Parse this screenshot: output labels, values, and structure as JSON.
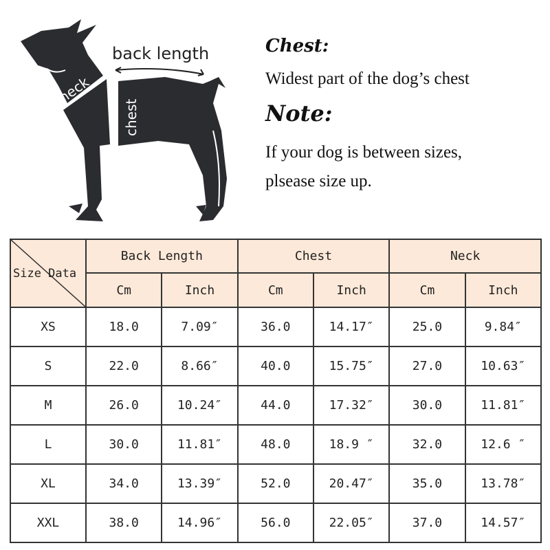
{
  "figure": {
    "labels": {
      "back_length": "back length",
      "neck": "neck",
      "chest": "chest"
    }
  },
  "notes": {
    "chest_title": "Chest:",
    "chest_text": "Widest part of the dog’s chest",
    "note_title": "Note:",
    "note_line1": "If your dog is between sizes,",
    "note_line2": "plsease size up."
  },
  "table": {
    "corner_label": "Size Data",
    "groups": [
      "Back Length",
      "Chest",
      "Neck"
    ],
    "units": [
      "Cm",
      "Inch",
      "Cm",
      "Inch",
      "Cm",
      "Inch"
    ],
    "rows": [
      {
        "size": "XS",
        "values": [
          "18.0",
          "7.09″",
          "36.0",
          "14.17″",
          "25.0",
          "9.84″"
        ]
      },
      {
        "size": "S",
        "values": [
          "22.0",
          "8.66″",
          "40.0",
          "15.75″",
          "27.0",
          "10.63″"
        ]
      },
      {
        "size": "M",
        "values": [
          "26.0",
          "10.24″",
          "44.0",
          "17.32″",
          "30.0",
          "11.81″"
        ]
      },
      {
        "size": "L",
        "values": [
          "30.0",
          "11.81″",
          "48.0",
          "18.9 ″",
          "32.0",
          "12.6 ″"
        ]
      },
      {
        "size": "XL",
        "values": [
          "34.0",
          "13.39″",
          "52.0",
          "20.47″",
          "35.0",
          "13.78″"
        ]
      },
      {
        "size": "XXL",
        "values": [
          "38.0",
          "14.96″",
          "56.0",
          "22.05″",
          "37.0",
          "14.57″"
        ]
      }
    ],
    "header_color": "#fde9d9"
  }
}
